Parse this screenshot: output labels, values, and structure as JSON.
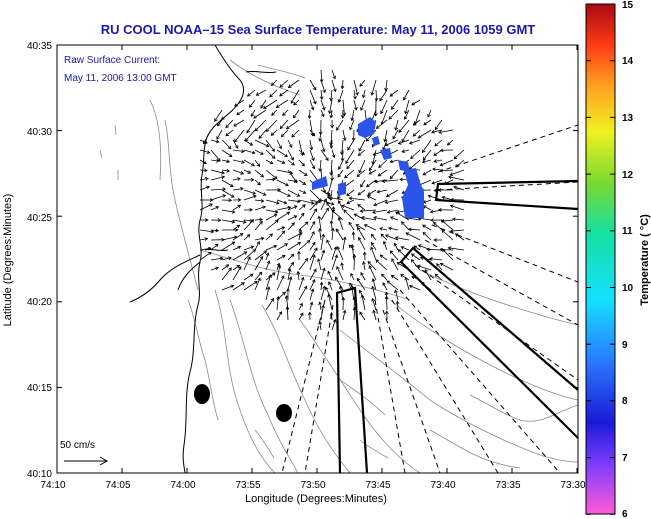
{
  "title": "RU COOL  NOAA–15  Sea Surface Temperature:  May 11, 2006 1059 GMT",
  "annotation": {
    "line1": "Raw Surface Current:",
    "line2": "May 11, 2006 13:00 GMT"
  },
  "axes": {
    "xlabel": "Longitude (Degrees:Minutes)",
    "ylabel": "Latitude (Degrees:Minutes)",
    "x_ticks": [
      "74:10",
      "74:05",
      "74:00",
      "73:55",
      "73:50",
      "73:45",
      "73:40",
      "73:35",
      "73:30"
    ],
    "y_ticks": [
      "40:35",
      "40:30",
      "40:25",
      "40:20",
      "40:15",
      "40:10"
    ]
  },
  "scale_label": "50 cm/s",
  "colorbar": {
    "label": "Temperature ( °C)",
    "ticks": [
      "15",
      "14",
      "13",
      "12",
      "11",
      "10",
      "9",
      "8",
      "7",
      "6"
    ]
  },
  "colors": {
    "title": "#1a1aa8",
    "sst_patch": "#2a55e8",
    "land_line": "#000000",
    "contour": "#8a8a8a"
  }
}
